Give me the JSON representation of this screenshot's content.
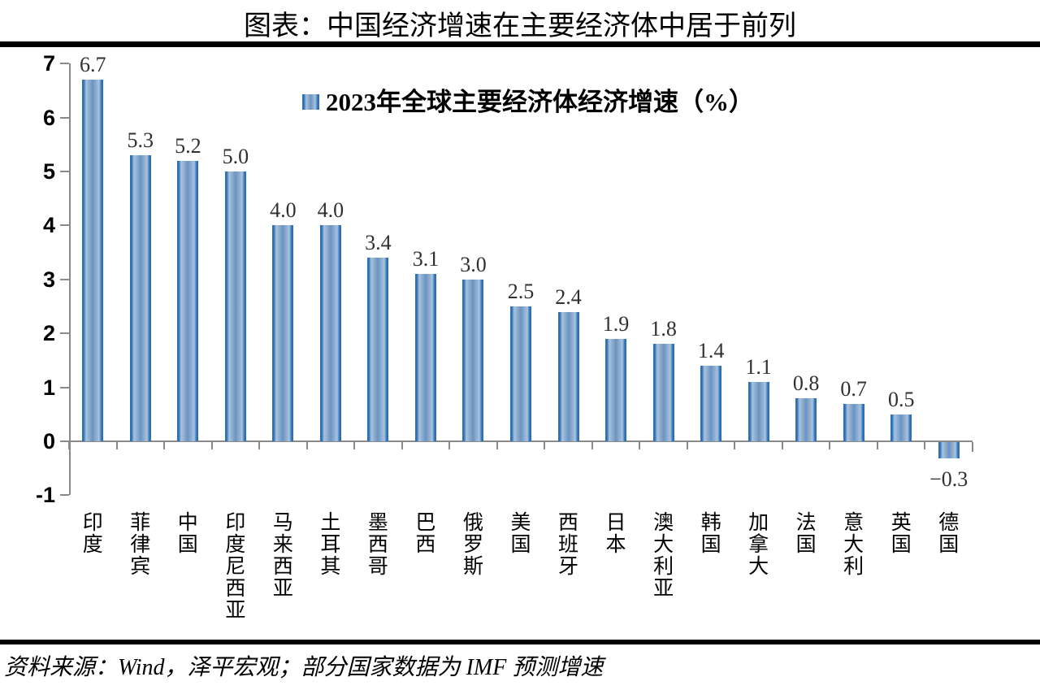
{
  "page": {
    "title": "图表：中国经济增速在主要经济体中居于前列",
    "source_note": "资料来源：Wind，泽平宏观；部分国家数据为 IMF 预测增速"
  },
  "legend": {
    "label": "2023年全球主要经济体经济增速（%）"
  },
  "colors": {
    "bar_edge": "#2e70b4",
    "bar_light": "#a9c3de",
    "bar_mid": "#6b94c0",
    "axis": "#8a8a8a",
    "value_label": "#303030",
    "rule": "#000000",
    "text": "#000000"
  },
  "chart_data": {
    "type": "bar",
    "title": "图表：中国经济增速在主要经济体中居于前列",
    "legend": [
      "2023年全球主要经济体经济增速（%）"
    ],
    "legend_position": "top-center-inside",
    "categories": [
      "印度",
      "菲律宾",
      "中国",
      "印度尼西亚",
      "马来西亚",
      "土耳其",
      "墨西哥",
      "巴西",
      "俄罗斯",
      "美国",
      "西班牙",
      "日本",
      "澳大利亚",
      "韩国",
      "加拿大",
      "法国",
      "意大利",
      "英国",
      "德国"
    ],
    "values": [
      6.7,
      5.3,
      5.2,
      5.0,
      4.0,
      4.0,
      3.4,
      3.1,
      3.0,
      2.5,
      2.4,
      1.9,
      1.8,
      1.4,
      1.1,
      0.8,
      0.7,
      0.5,
      -0.3
    ],
    "value_labels": [
      "6.7",
      "5.3",
      "5.2",
      "5.0",
      "4.0",
      "4.0",
      "3.4",
      "3.1",
      "3.0",
      "2.5",
      "2.4",
      "1.9",
      "1.8",
      "1.4",
      "1.1",
      "0.8",
      "0.7",
      "0.5",
      "−0.3"
    ],
    "yticks": [
      7,
      6,
      5,
      4,
      3,
      2,
      1,
      0,
      -1
    ],
    "ytick_labels": [
      "7",
      "6",
      "5",
      "4",
      "3",
      "2",
      "1",
      "0",
      "-1"
    ],
    "ylim": [
      -1,
      7
    ],
    "xlabel": "",
    "ylabel": "",
    "grid": false,
    "source": "资料来源：Wind，泽平宏观；部分国家数据为 IMF 预测增速"
  }
}
